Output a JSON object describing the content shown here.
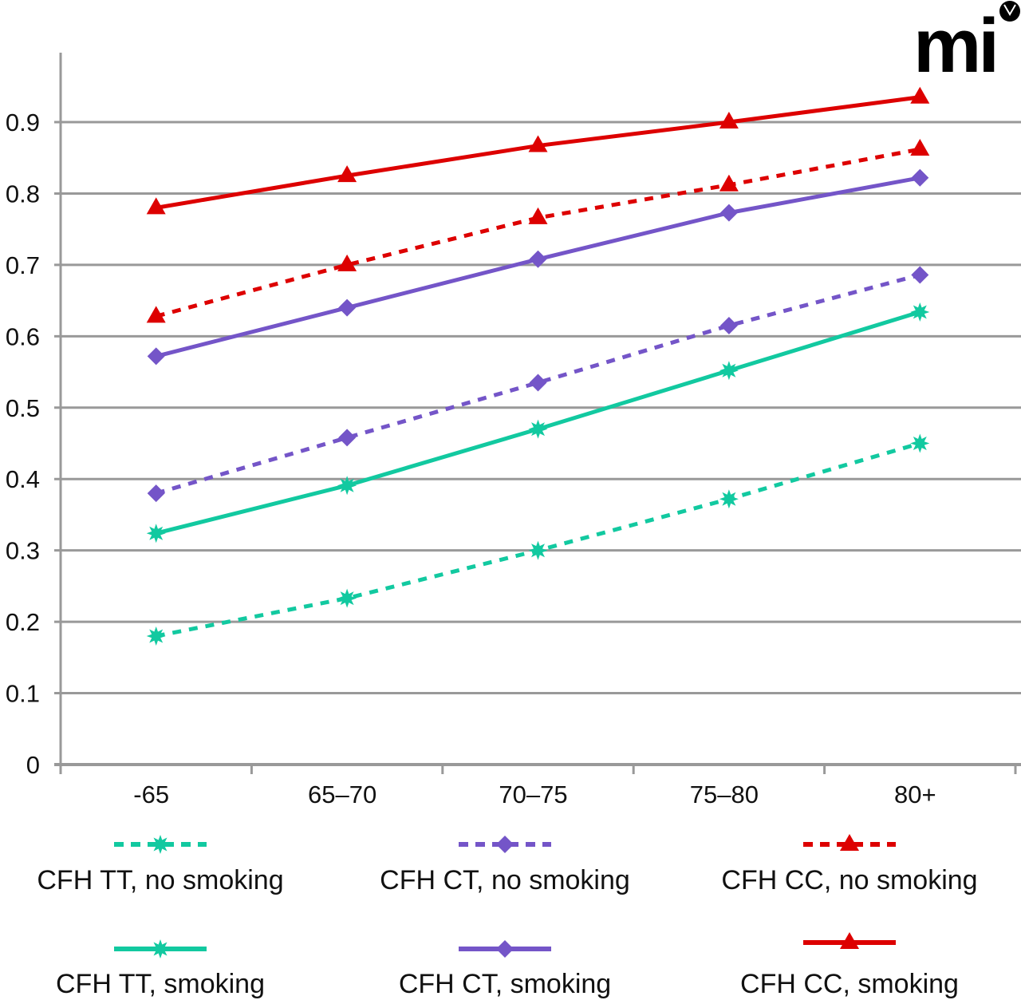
{
  "chart_data": {
    "type": "line",
    "title": "",
    "xlabel": "",
    "ylabel": "",
    "categories": [
      "-65",
      "65–70",
      "70–75",
      "75–80",
      "80+"
    ],
    "ylim": [
      0,
      0.9
    ],
    "yticks": [
      "0",
      "0.1",
      "0.2",
      "0.3",
      "0.4",
      "0.5",
      "0.6",
      "0.7",
      "0.8",
      "0.9"
    ],
    "grid": true,
    "legend_position": "bottom",
    "series": [
      {
        "name": "CFH TT, no smoking",
        "color": "#12c9a0",
        "dashed": true,
        "marker": "star",
        "values": [
          0.18,
          0.233,
          0.3,
          0.372,
          0.45
        ]
      },
      {
        "name": "CFH CT, no smoking",
        "color": "#7455c8",
        "dashed": true,
        "marker": "diamond",
        "values": [
          0.38,
          0.458,
          0.535,
          0.615,
          0.686
        ]
      },
      {
        "name": "CFH CC, no smoking",
        "color": "#dd0000",
        "dashed": true,
        "marker": "triangle",
        "values": [
          0.628,
          0.7,
          0.766,
          0.812,
          0.862
        ]
      },
      {
        "name": "CFH TT, smoking",
        "color": "#12c9a0",
        "dashed": false,
        "marker": "star",
        "values": [
          0.324,
          0.391,
          0.47,
          0.552,
          0.634
        ]
      },
      {
        "name": "CFH CT, smoking",
        "color": "#7455c8",
        "dashed": false,
        "marker": "diamond",
        "values": [
          0.572,
          0.64,
          0.708,
          0.773,
          0.822
        ]
      },
      {
        "name": "CFH CC, smoking",
        "color": "#dd0000",
        "dashed": false,
        "marker": "triangle",
        "values": [
          0.78,
          0.825,
          0.867,
          0.9,
          0.935
        ]
      }
    ]
  },
  "logo": {
    "text": "mi"
  }
}
